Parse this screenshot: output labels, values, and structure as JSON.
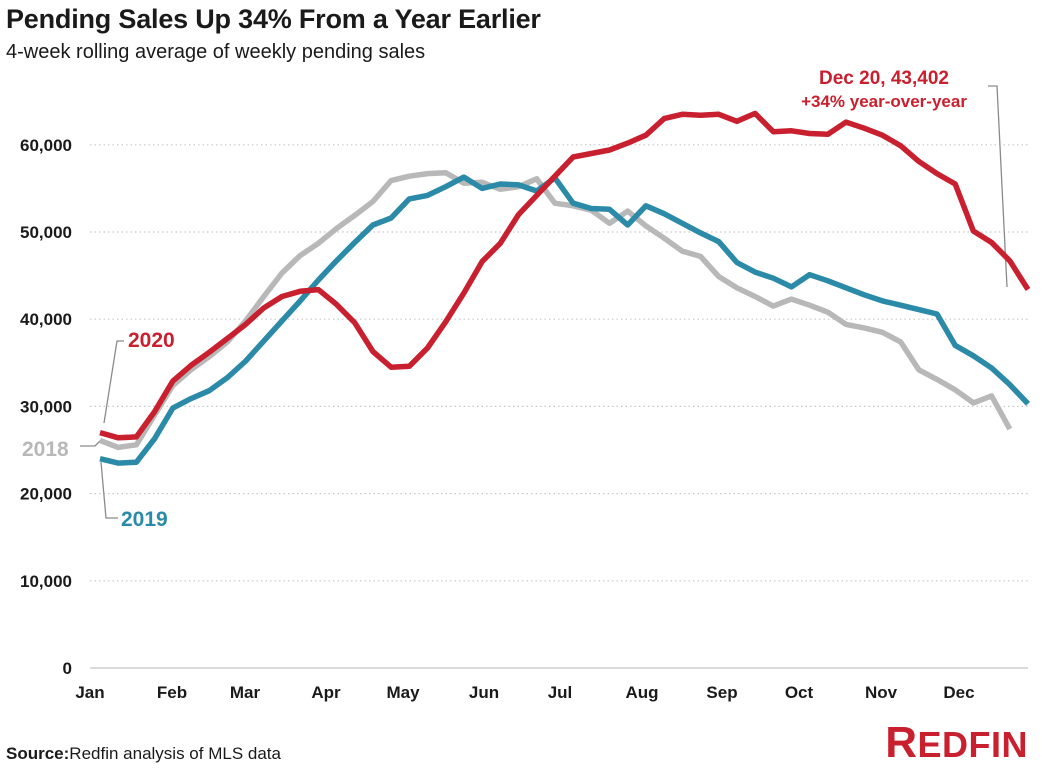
{
  "header": {
    "title": "Pending Sales Up 34% From a Year Earlier",
    "subtitle": "4-week rolling average of weekly pending sales"
  },
  "footer": {
    "source_label": "Source:",
    "source_text": "Redfin analysis of MLS data",
    "logo_first": "R",
    "logo_rest": "EDFIN"
  },
  "colors": {
    "s2020": "#c8202e",
    "s2019": "#2a8aa8",
    "s2018": "#b8b8b8",
    "grid": "#c8c8c8",
    "leader": "#8a8a8a"
  },
  "chart_data": {
    "type": "line",
    "title": "Pending Sales Up 34% From a Year Earlier",
    "subtitle": "4-week rolling average of weekly pending sales",
    "xlabel": "",
    "ylabel": "",
    "ylim": [
      0,
      70000
    ],
    "yticks": [
      0,
      10000,
      20000,
      30000,
      40000,
      50000,
      60000
    ],
    "ytick_labels": [
      "0",
      "10,000",
      "20,000",
      "30,000",
      "40,000",
      "50,000",
      "60,000"
    ],
    "xtick_labels": [
      "Jan",
      "Feb",
      "Mar",
      "Apr",
      "May",
      "Jun",
      "Jul",
      "Aug",
      "Sep",
      "Oct",
      "Nov",
      "Dec"
    ],
    "x_unit": "week of year (0-51)",
    "grid": "horizontal dotted",
    "series": [
      {
        "name": "2018",
        "label_color": "#b8b8b8",
        "values": [
          26100,
          25300,
          25600,
          29000,
          32400,
          34200,
          35700,
          37400,
          39800,
          42600,
          45300,
          47300,
          48700,
          50400,
          51900,
          53500,
          55900,
          56400,
          56700,
          56800,
          55600,
          55700,
          54900,
          55200,
          56100,
          53300,
          53000,
          52500,
          51000,
          52400,
          50700,
          49300,
          47800,
          47200,
          44900,
          43600,
          42600,
          41500,
          42300,
          41600,
          40800,
          39400,
          39000,
          38500,
          37400,
          34200,
          33100,
          31900,
          30400,
          31200,
          27400
        ]
      },
      {
        "name": "2019",
        "label_color": "#2a8aa8",
        "values": [
          24000,
          23500,
          23600,
          26300,
          29800,
          30900,
          31800,
          33300,
          35200,
          37500,
          39800,
          42100,
          44500,
          46700,
          48800,
          50800,
          51600,
          53800,
          54200,
          55200,
          56300,
          55000,
          55500,
          55400,
          54700,
          56200,
          53300,
          52700,
          52600,
          50800,
          53000,
          52100,
          51000,
          49900,
          48900,
          46500,
          45400,
          44700,
          43700,
          45100,
          44400,
          43600,
          42800,
          42100,
          41600,
          41100,
          40600,
          37000,
          35800,
          34400,
          32500,
          30300
        ]
      },
      {
        "name": "2020",
        "label_color": "#c8202e",
        "values": [
          27000,
          26400,
          26500,
          29400,
          32900,
          34700,
          36200,
          37800,
          39400,
          41300,
          42600,
          43200,
          43400,
          41700,
          39600,
          36300,
          34500,
          34600,
          36700,
          39700,
          43000,
          46600,
          48700,
          52000,
          54200,
          56400,
          58600,
          59000,
          59400,
          60200,
          61100,
          63000,
          63500,
          63400,
          63500,
          62700,
          63600,
          61500,
          61600,
          61300,
          61200,
          62600,
          61900,
          61100,
          59900,
          58100,
          56700,
          55500,
          50100,
          48800,
          46700,
          43402
        ]
      }
    ],
    "series_labels": [
      {
        "series": "2020",
        "text": "2020"
      },
      {
        "series": "2018",
        "text": "2018"
      },
      {
        "series": "2019",
        "text": "2019"
      }
    ],
    "annotations": [
      {
        "series": "2020",
        "point": "Dec 20",
        "value": 43402,
        "line1": "Dec 20, 43,402",
        "line2": "+34% year-over-year"
      }
    ]
  }
}
